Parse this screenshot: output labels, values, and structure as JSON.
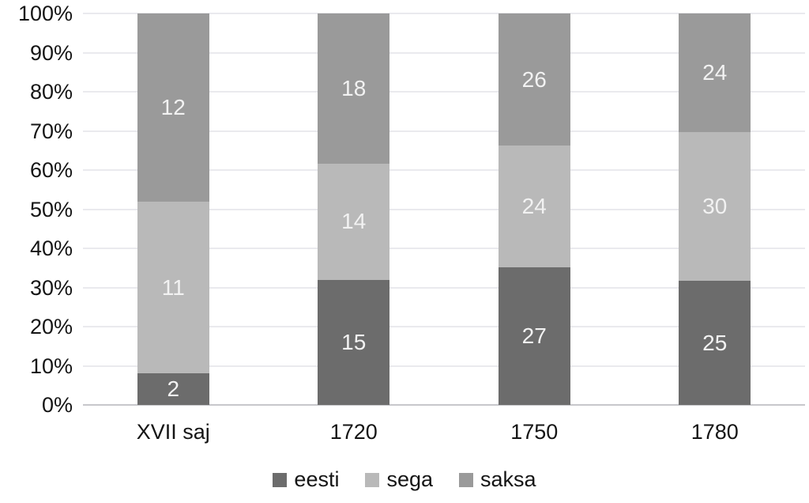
{
  "chart_data": {
    "type": "bar",
    "stacked": true,
    "percent_axis": true,
    "categories": [
      "XVII saj",
      "1720",
      "1750",
      "1780"
    ],
    "series": [
      {
        "name": "eesti",
        "color": "#6c6c6c",
        "values": [
          2,
          15,
          27,
          25
        ]
      },
      {
        "name": "sega",
        "color": "#b9b9b9",
        "values": [
          11,
          14,
          24,
          30
        ]
      },
      {
        "name": "saksa",
        "color": "#9a9a9a",
        "values": [
          12,
          18,
          26,
          24
        ]
      }
    ],
    "y_tick_labels": [
      "0%",
      "10%",
      "20%",
      "30%",
      "40%",
      "50%",
      "60%",
      "70%",
      "80%",
      "90%",
      "100%"
    ],
    "ylim": [
      0,
      100
    ],
    "grid": true,
    "legend_position": "bottom",
    "data_label_color": "#f2f2f2",
    "gridline_color": "#eaeaee",
    "axis_line_color": "#c7c7cb",
    "tick_label_color": "#151515",
    "background_color": "#ffffff"
  }
}
